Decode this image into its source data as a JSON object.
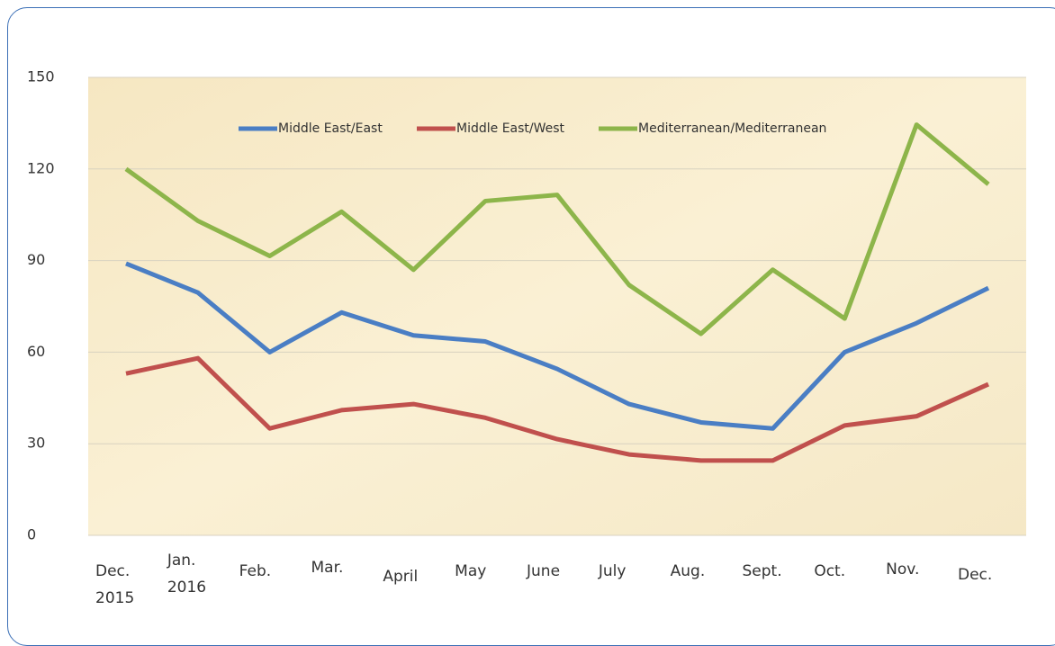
{
  "chart_data": {
    "type": "line",
    "categories": [
      "Dec.\n2015",
      "Jan.\n2016",
      "Feb.",
      "Mar.",
      "April",
      "May",
      "June",
      "July",
      "Aug.",
      "Sept.",
      "Oct.",
      "Nov.",
      "Dec."
    ],
    "series": [
      {
        "name": "Middle East/East",
        "color": "#4a7ec4",
        "values": [
          89,
          79.5,
          60,
          73,
          65.5,
          63.5,
          54.5,
          43,
          37,
          35,
          60,
          69.5,
          81
        ]
      },
      {
        "name": "Middle East/West",
        "color": "#c0504d",
        "values": [
          53,
          58,
          35,
          41,
          43,
          38.5,
          31.5,
          26.5,
          24.5,
          24.5,
          36,
          39,
          49.5
        ]
      },
      {
        "name": "Mediterranean/Mediterranean",
        "color": "#8db54a",
        "values": [
          120,
          103,
          91.5,
          106,
          87,
          109.5,
          111.5,
          82,
          66,
          87,
          71,
          134.5,
          115
        ]
      }
    ],
    "ylim": [
      0,
      150
    ],
    "yticks": [
      0,
      30,
      60,
      90,
      120,
      150
    ],
    "grid": true,
    "legend": "top"
  }
}
